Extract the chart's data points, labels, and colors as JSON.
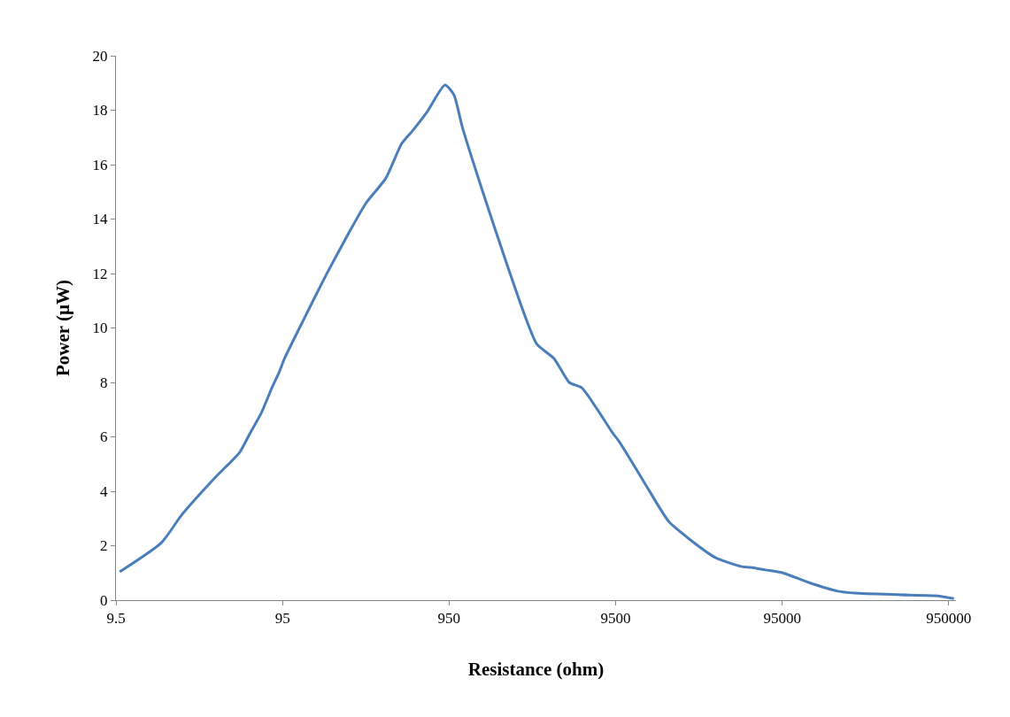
{
  "chart_data": {
    "type": "line",
    "xlabel": "Resistance (ohm)",
    "ylabel": "Power (µW)",
    "log": "x",
    "x": [
      10.0,
      17.8,
      23.7,
      37.2,
      52.5,
      60,
      71,
      82,
      90.5,
      97.7,
      128,
      173,
      233,
      300,
      396,
      494,
      572,
      703,
      897,
      1015,
      1142,
      1540,
      2080,
      2750,
      3200,
      4050,
      5000,
      5950,
      7350,
      9100,
      10000,
      14000,
      19800,
      25500,
      37800,
      53700,
      61700,
      75500,
      95000,
      137000,
      205000,
      260000,
      475000,
      790000,
      1020000
    ],
    "series": [
      {
        "color": "#4a7ebb",
        "values": [
          1.04,
          2.11,
          3.15,
          4.49,
          5.43,
          6.08,
          6.89,
          7.8,
          8.36,
          8.88,
          10.34,
          11.93,
          13.4,
          14.57,
          15.5,
          16.78,
          17.24,
          17.95,
          18.93,
          18.57,
          17.37,
          14.86,
          12.46,
          10.34,
          9.4,
          8.88,
          8.0,
          7.8,
          7.02,
          6.15,
          5.82,
          4.36,
          2.89,
          2.31,
          1.56,
          1.24,
          1.2,
          1.11,
          1.01,
          0.65,
          0.33,
          0.26,
          0.2,
          0.16,
          0.06
        ]
      }
    ],
    "xlim": [
      9.5,
      1050000
    ],
    "xticks": [
      9.5,
      95,
      950,
      9500,
      95000,
      950000
    ],
    "ylim": [
      0,
      20
    ],
    "yticks": [
      0,
      2,
      4,
      6,
      8,
      10,
      12,
      14,
      16,
      18,
      20
    ],
    "grid": false,
    "legend": false,
    "marker": "none",
    "line_style": "solid"
  }
}
